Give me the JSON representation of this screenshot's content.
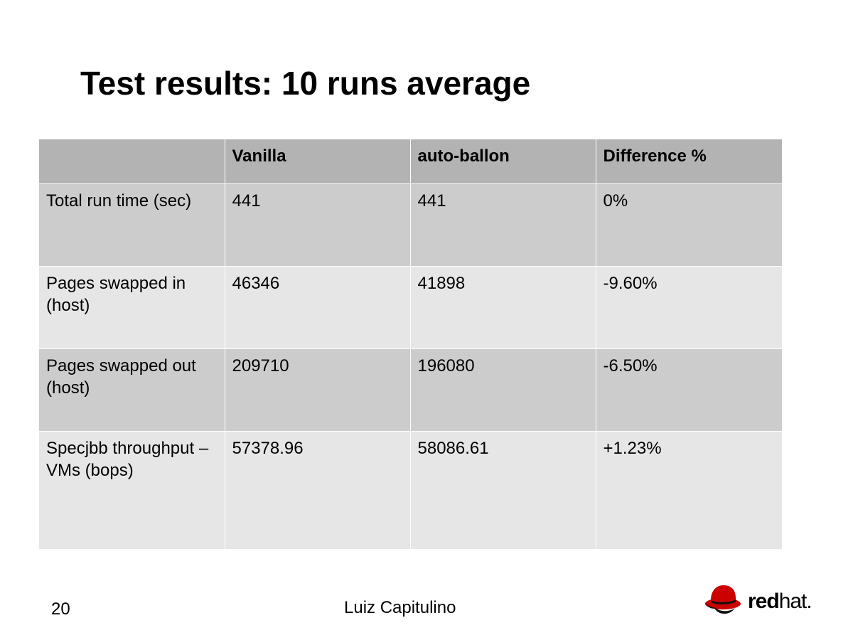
{
  "slide": {
    "title": "Test results: 10 runs average",
    "number": "20",
    "author": "Luiz Capitulino"
  },
  "table": {
    "headers": [
      "",
      "Vanilla",
      "auto-ballon",
      "Difference %"
    ],
    "rows": [
      [
        "Total run time  (sec)",
        "441",
        "441",
        "0%"
      ],
      [
        "Pages swapped in (host)",
        "46346",
        "41898",
        "-9.60%"
      ],
      [
        "Pages swapped out (host)",
        "209710",
        "196080",
        "-6.50%"
      ],
      [
        "Specjbb throughput – VMs (bops)",
        "57378.96",
        "58086.61",
        "+1.23%"
      ]
    ]
  },
  "logo": {
    "icon": "red-fedora-hat-icon",
    "part1": "red",
    "part2": "hat",
    "mark": ".",
    "brand_color": "#cc0000"
  }
}
